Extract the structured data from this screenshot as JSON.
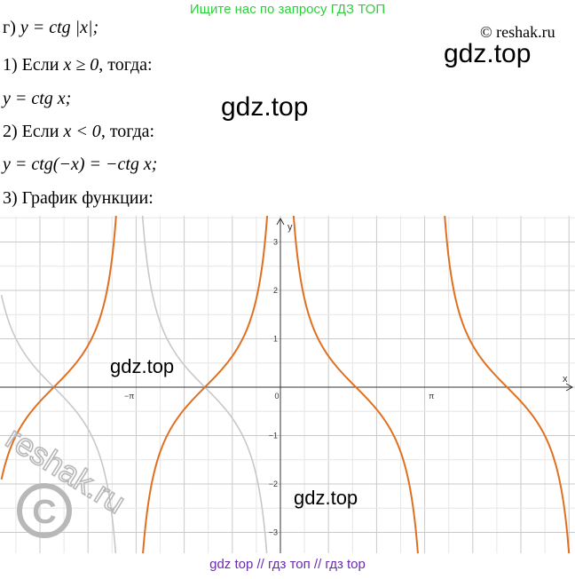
{
  "banner": "Ищите нас по запросу ГДЗ ТОП",
  "copyright": "© reshak.ru",
  "watermarks": [
    "gdz.top",
    "gdz.top",
    "gdz.top",
    "gdz.top"
  ],
  "reshak_watermark": "reshak.ru",
  "lines": {
    "task": {
      "prefix": "г) ",
      "math": "y = ctg |x|;"
    },
    "case1": {
      "text": "1) Если ",
      "math": "x ≥ 0",
      "suffix": ", тогда:"
    },
    "case1_eq": {
      "math": "y = ctg x;"
    },
    "case2": {
      "text": "2) Если ",
      "math": "x < 0",
      "suffix": ", тогда:"
    },
    "case2_eq": {
      "math": "y = ctg(−x) = −ctg x;"
    },
    "case3": {
      "text": "3) График функции:"
    }
  },
  "chart_data": {
    "type": "line",
    "xlabel": "x",
    "ylabel": "y",
    "xlim": [
      -5.8,
      8.3
    ],
    "ylim": [
      -3.4,
      3.5
    ],
    "x_ticks": [
      {
        "value": -3.14159,
        "label": "−π"
      },
      {
        "value": 0,
        "label": "0"
      },
      {
        "value": 3.14159,
        "label": "π"
      }
    ],
    "y_ticks": [
      {
        "value": 3,
        "label": "3"
      },
      {
        "value": 2,
        "label": "2"
      },
      {
        "value": 1,
        "label": "1"
      },
      {
        "value": -1,
        "label": "−1"
      },
      {
        "value": -2,
        "label": "−2"
      },
      {
        "value": -3,
        "label": "−3"
      }
    ],
    "grid": true,
    "series": [
      {
        "function": "-cot(x)",
        "domain": [
          -5.8,
          0
        ],
        "color": "#e07020"
      },
      {
        "function": "cot(x)",
        "domain": [
          0,
          8.3
        ],
        "color": "#e07020"
      },
      {
        "function": "cot(x)",
        "domain": [
          -5.8,
          0
        ],
        "color": "#c8c8c8"
      }
    ]
  },
  "footer": "gdz top  //  гдз топ  //  гдз top"
}
